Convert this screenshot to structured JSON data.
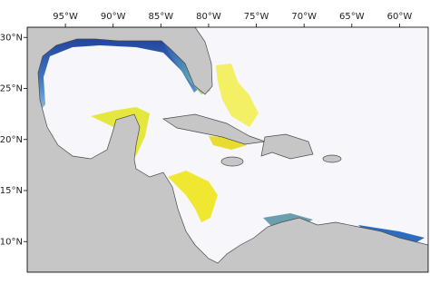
{
  "map": {
    "xlim": [
      -99,
      -57
    ],
    "ylim": [
      7,
      31
    ],
    "xticks": [
      {
        "value": -95,
        "label": "95°W"
      },
      {
        "value": -90,
        "label": "90°W"
      },
      {
        "value": -85,
        "label": "85°W"
      },
      {
        "value": -80,
        "label": "80°W"
      },
      {
        "value": -75,
        "label": "75°W"
      },
      {
        "value": -70,
        "label": "70°W"
      },
      {
        "value": -65,
        "label": "65°W"
      },
      {
        "value": -60,
        "label": "60°W"
      }
    ],
    "yticks": [
      {
        "value": 30,
        "label": "30°N"
      },
      {
        "value": 25,
        "label": "25°N"
      },
      {
        "value": 20,
        "label": "20°N"
      },
      {
        "value": 15,
        "label": "15°N"
      },
      {
        "value": 10,
        "label": "10°N"
      }
    ]
  }
}
